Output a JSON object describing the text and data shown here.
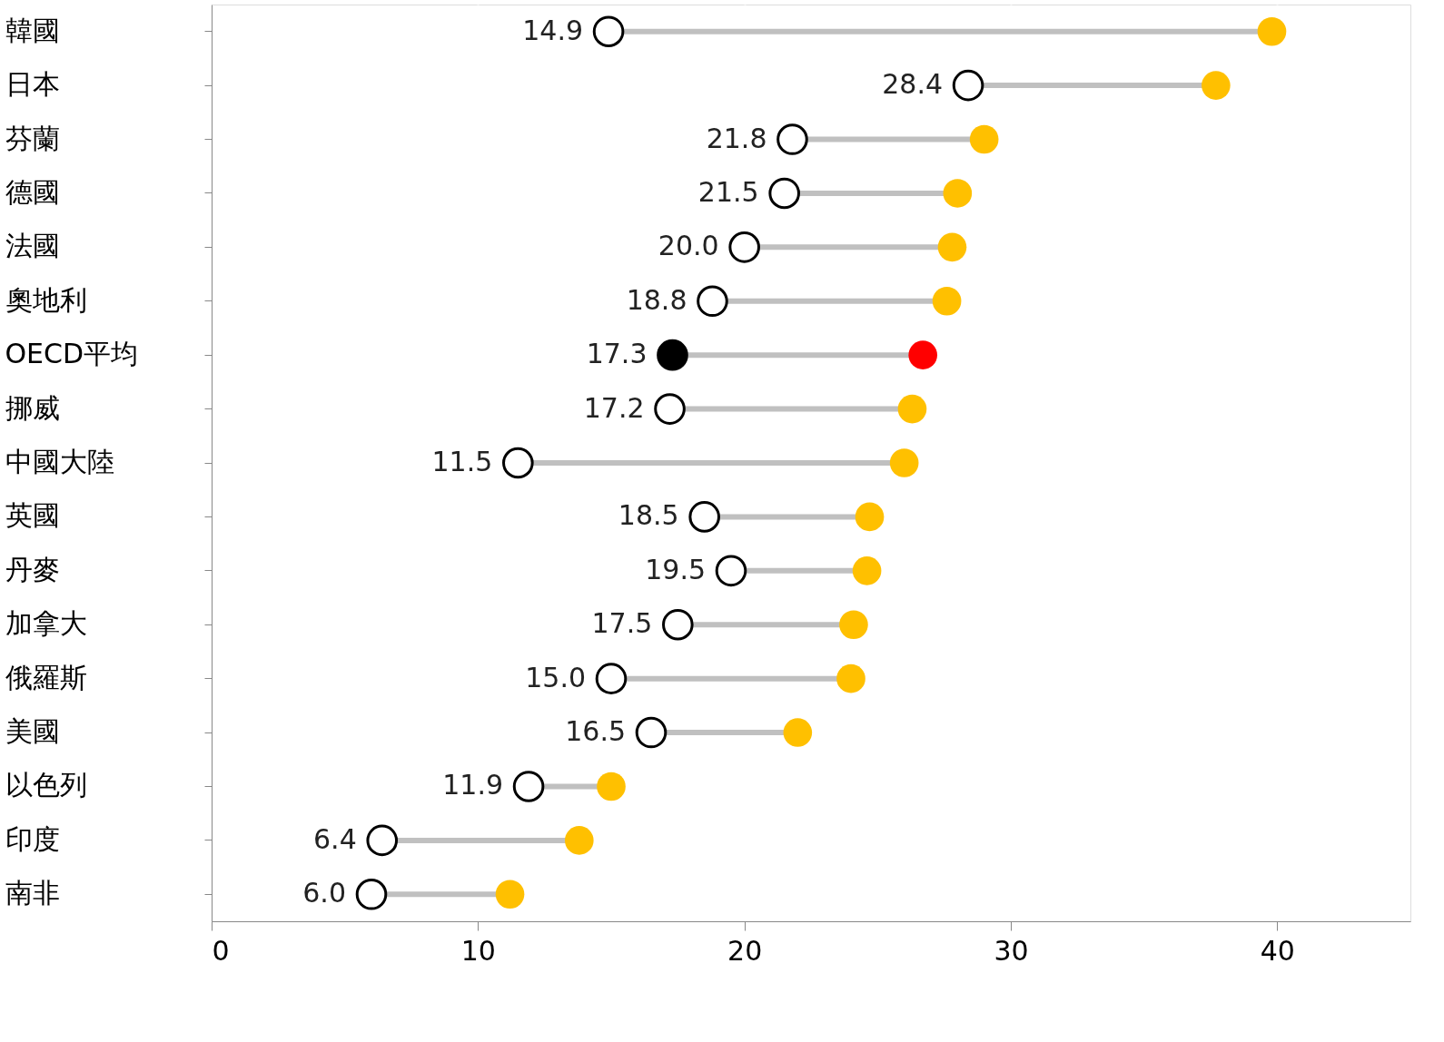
{
  "chart_data": {
    "type": "scatter",
    "orientation": "horizontal",
    "categories": [
      "韓國",
      "日本",
      "芬蘭",
      "德國",
      "法國",
      "奧地利",
      "OECD平均",
      "挪威",
      "中國大陸",
      "英國",
      "丹麥",
      "加拿大",
      "俄羅斯",
      "美國",
      "以色列",
      "印度",
      "南非"
    ],
    "xlim": [
      0,
      45
    ],
    "xticks": [
      0,
      10,
      20,
      30,
      40
    ],
    "grid": "x",
    "series": [
      {
        "colors": [
          "#ffffff",
          "#ffffff",
          "#ffffff",
          "#ffffff",
          "#ffffff",
          "#ffffff",
          "#000000",
          "#ffffff",
          "#ffffff",
          "#ffffff",
          "#ffffff",
          "#ffffff",
          "#ffffff",
          "#ffffff",
          "#ffffff",
          "#ffffff",
          "#ffffff"
        ],
        "values": [
          14.9,
          28.4,
          21.8,
          21.5,
          20.0,
          18.8,
          17.3,
          17.2,
          11.5,
          18.5,
          19.5,
          17.5,
          15.0,
          16.5,
          11.9,
          6.4,
          6.0
        ],
        "value_labels": [
          "14.9",
          "28.4",
          "21.8",
          "21.5",
          "20.0",
          "18.8",
          "17.3",
          "17.2",
          "11.5",
          "18.5",
          "19.5",
          "17.5",
          "15.0",
          "16.5",
          "11.9",
          "6.4",
          "6.0"
        ]
      },
      {
        "colors": [
          "#ffc000",
          "#ffc000",
          "#ffc000",
          "#ffc000",
          "#ffc000",
          "#ffc000",
          "#ff0000",
          "#ffc000",
          "#ffc000",
          "#ffc000",
          "#ffc000",
          "#ffc000",
          "#ffc000",
          "#ffc000",
          "#ffc000",
          "#ffc000",
          "#ffc000"
        ],
        "values": [
          39.8,
          37.7,
          29.0,
          28.0,
          27.8,
          27.6,
          26.7,
          26.3,
          26.0,
          24.7,
          24.6,
          24.1,
          24.0,
          22.0,
          15.0,
          13.8,
          11.2
        ]
      }
    ]
  }
}
